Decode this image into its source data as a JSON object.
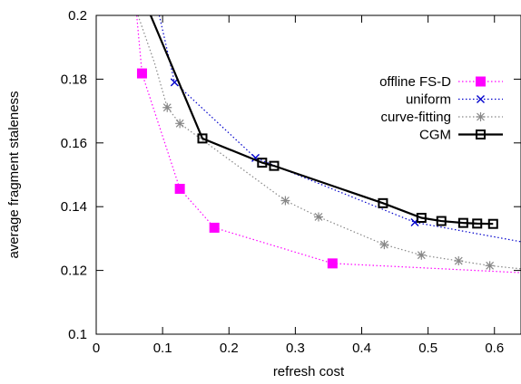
{
  "chart_data": {
    "type": "line",
    "xlabel": "refresh cost",
    "ylabel": "average fragment staleness",
    "xlim": [
      0,
      0.64
    ],
    "ylim": [
      0.1,
      0.2
    ],
    "xticks": [
      {
        "value": 0,
        "label": "0"
      },
      {
        "value": 0.1,
        "label": "0.1"
      },
      {
        "value": 0.2,
        "label": "0.2"
      },
      {
        "value": 0.3,
        "label": "0.3"
      },
      {
        "value": 0.4,
        "label": "0.4"
      },
      {
        "value": 0.5,
        "label": "0.5"
      },
      {
        "value": 0.6,
        "label": "0.6"
      }
    ],
    "yticks": [
      {
        "value": 0.1,
        "label": "0.1"
      },
      {
        "value": 0.12,
        "label": "0.12"
      },
      {
        "value": 0.14,
        "label": "0.14"
      },
      {
        "value": 0.16,
        "label": "0.16"
      },
      {
        "value": 0.18,
        "label": "0.18"
      },
      {
        "value": 0.2,
        "label": "0.2"
      }
    ],
    "grid": false,
    "legend_position": "top-right",
    "series": [
      {
        "name": "offline FS-D",
        "color": "#ff00ff",
        "line_style": "dotted",
        "marker": "filled-square",
        "x": [
          0.061,
          0.069,
          0.126,
          0.178,
          0.356,
          0.64
        ],
        "y": [
          0.2,
          0.1818,
          0.1456,
          0.1334,
          0.1222,
          0.1193
        ],
        "marker_indices": [
          1,
          2,
          3,
          4
        ]
      },
      {
        "name": "uniform",
        "color": "#0000cc",
        "line_style": "dotted",
        "marker": "x",
        "x": [
          0.095,
          0.118,
          0.24,
          0.48,
          0.64
        ],
        "y": [
          0.2,
          0.179,
          0.1553,
          0.1351,
          0.129
        ],
        "marker_indices": [
          1,
          2,
          3
        ]
      },
      {
        "name": "curve-fitting",
        "color": "#888888",
        "line_style": "dotted",
        "marker": "asterisk",
        "x": [
          0.063,
          0.088,
          0.107,
          0.126,
          0.285,
          0.335,
          0.434,
          0.49,
          0.546,
          0.593,
          0.64
        ],
        "y": [
          0.2,
          0.185,
          0.1711,
          0.1661,
          0.1419,
          0.1368,
          0.1281,
          0.1248,
          0.123,
          0.1215,
          0.1205
        ],
        "marker_indices": [
          2,
          3,
          4,
          5,
          6,
          7,
          8,
          9
        ]
      },
      {
        "name": "CGM",
        "color": "#000000",
        "line_style": "solid",
        "marker": "open-square",
        "x": [
          0.082,
          0.16,
          0.25,
          0.268,
          0.432,
          0.49,
          0.52,
          0.553,
          0.574,
          0.598
        ],
        "y": [
          0.2,
          0.1614,
          0.1538,
          0.1528,
          0.1411,
          0.1365,
          0.1355,
          0.1349,
          0.1347,
          0.1346
        ],
        "marker_indices": [
          1,
          2,
          3,
          4,
          5,
          6,
          7,
          8,
          9
        ]
      }
    ]
  }
}
